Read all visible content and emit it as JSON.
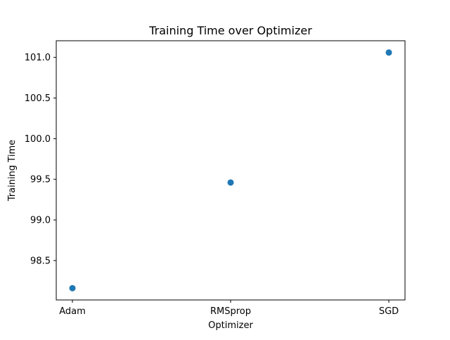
{
  "chart_data": {
    "type": "scatter",
    "title": "Training Time over Optimizer",
    "xlabel": "Optimizer",
    "ylabel": "Training Time",
    "categories": [
      "Adam",
      "RMSprop",
      "SGD"
    ],
    "values": [
      98.16,
      99.46,
      101.06
    ],
    "ylim": [
      98.015,
      101.205
    ],
    "yticks": [
      98.5,
      99.0,
      99.5,
      100.0,
      100.5,
      101.0
    ],
    "ytick_labels": [
      "98.5",
      "99.0",
      "99.5",
      "100.0",
      "100.5",
      "101.0"
    ],
    "grid": false,
    "legend": "none",
    "marker_color": "#1f77b4"
  }
}
